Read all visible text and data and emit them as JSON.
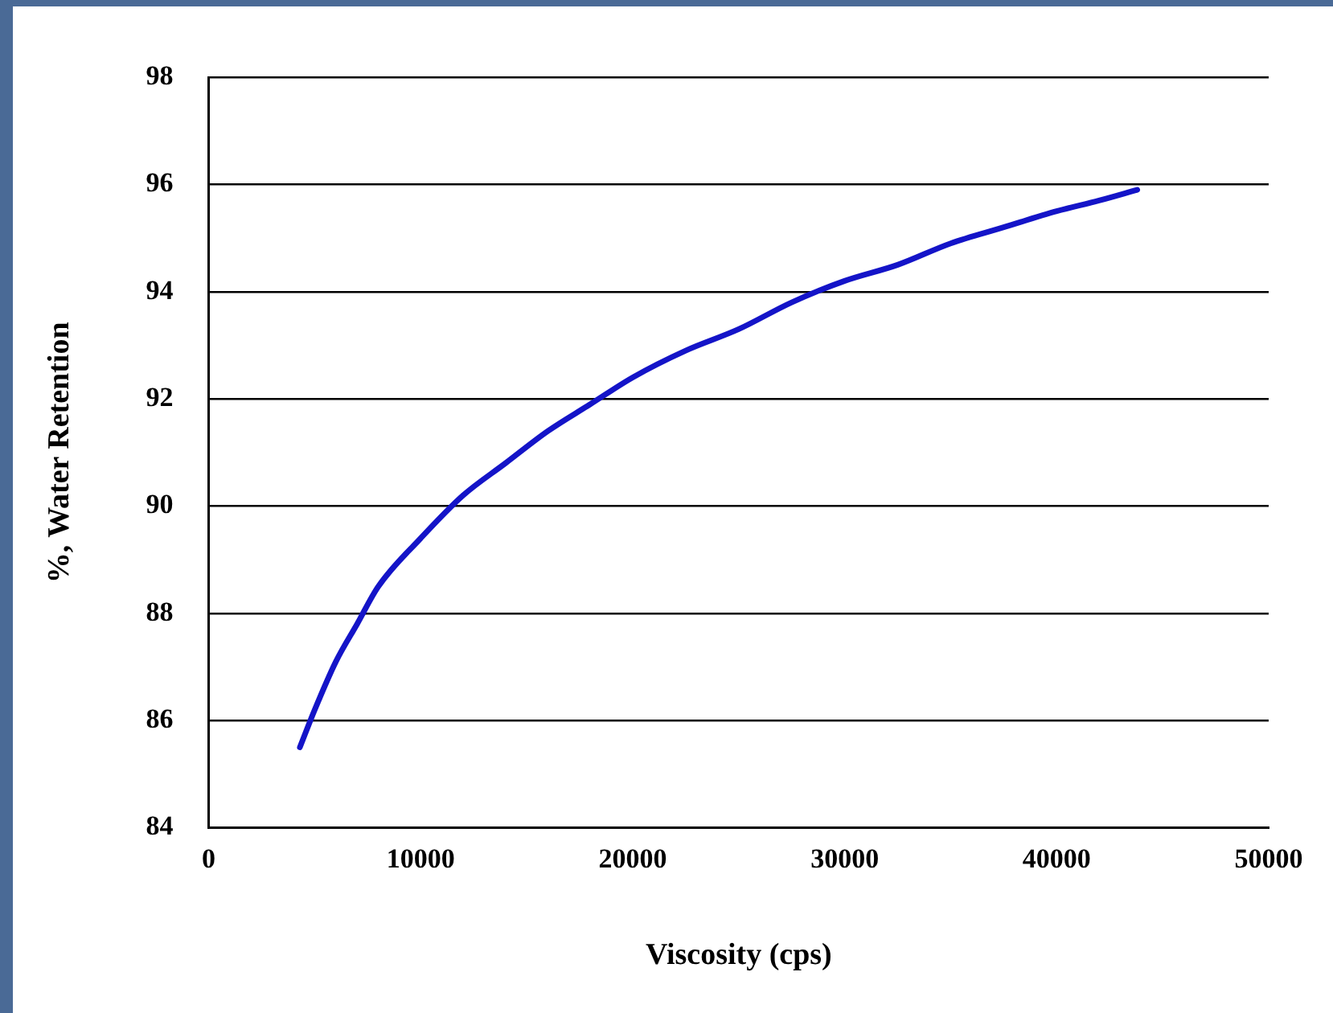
{
  "chart_data": {
    "type": "line",
    "xlabel": "Viscosity (cps)",
    "ylabel": "%, Water Retention",
    "x": [
      4300,
      5000,
      6000,
      7000,
      8000,
      10000,
      12000,
      14000,
      16000,
      18000,
      20000,
      22500,
      25000,
      27500,
      30000,
      32500,
      35000,
      37500,
      40000,
      42000,
      43800
    ],
    "series": [
      {
        "color": "#1414c8",
        "values": [
          85.5,
          86.2,
          87.1,
          87.8,
          88.5,
          89.4,
          90.2,
          90.8,
          91.4,
          91.9,
          92.4,
          92.9,
          93.3,
          93.8,
          94.2,
          94.5,
          94.9,
          95.2,
          95.5,
          95.7,
          95.9
        ]
      }
    ],
    "xlim": [
      0,
      50000
    ],
    "xticks": [
      0,
      10000,
      20000,
      30000,
      40000,
      50000
    ],
    "ylim": [
      84,
      98
    ],
    "yticks": [
      84,
      86,
      88,
      90,
      92,
      94,
      96,
      98
    ],
    "grid": "y",
    "legend": false,
    "marker": "none",
    "line_style": "solid"
  }
}
